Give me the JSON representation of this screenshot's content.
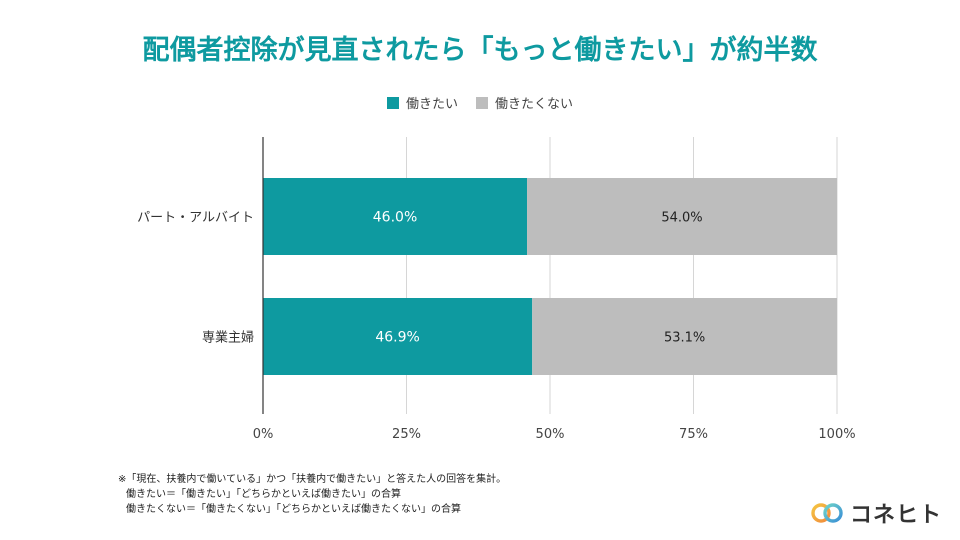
{
  "title": "配偶者控除が見直されたら「もっと働きたい」が約半数",
  "legend": [
    {
      "label": "働きたい",
      "color": "#0e9aa0"
    },
    {
      "label": "働きたくない",
      "color": "#bdbdbd"
    }
  ],
  "chart_data": {
    "type": "bar",
    "orientation": "horizontal",
    "stacked": true,
    "categories": [
      "パート・アルバイト",
      "専業主婦"
    ],
    "series": [
      {
        "name": "働きたい",
        "values": [
          46.0,
          46.9
        ],
        "color": "#0e9aa0",
        "label_color": "#ffffff"
      },
      {
        "name": "働きたくない",
        "values": [
          54.0,
          53.1
        ],
        "color": "#bdbdbd",
        "label_color": "#222222"
      }
    ],
    "data_labels": [
      [
        "46.0%",
        "46.9%"
      ],
      [
        "54.0%",
        "53.1%"
      ]
    ],
    "xlim": [
      0,
      100
    ],
    "xticks": [
      0,
      25,
      50,
      75,
      100
    ],
    "xtick_labels": [
      "0%",
      "25%",
      "50%",
      "75%",
      "100%"
    ],
    "grid": true,
    "legend_position": "top"
  },
  "footnote": {
    "line1": "※「現在、扶養内で働いている」かつ「扶養内で働きたい」と答えた人の回答を集計。",
    "line2": "働きたい＝「働きたい」「どちらかといえば働きたい」の合算",
    "line3": "働きたくない＝「働きたくない」「どちらかといえば働きたくない」の合算"
  },
  "brand": {
    "name": "コネヒト"
  }
}
